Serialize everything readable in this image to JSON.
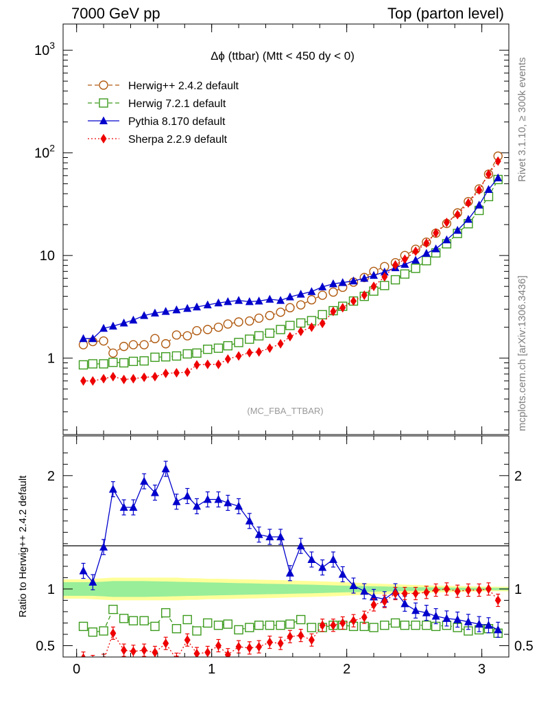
{
  "header": {
    "left": "7000 GeV pp",
    "right": "Top (parton level)"
  },
  "side": {
    "rivet": "Rivet 3.1.10, ≥ 300k events",
    "mcplots": "mcplots.cern.ch [arXiv:1306.3436]"
  },
  "colors": {
    "herwigpp": "#b05a10",
    "herwig7": "#3b9a1c",
    "pythia": "#0000cc",
    "sherpa": "#ee0000",
    "band_outer": "#ffff99",
    "band_inner": "#99ee99"
  },
  "chart_data": [
    {
      "type": "line",
      "title": "Δϕ (ttbar) (Mtt < 450 dy < 0)",
      "watermark": "(MC_FBA_TTBAR)",
      "yscale": "log",
      "xlim": [
        -0.1,
        3.2
      ],
      "ylim": [
        0.18,
        1800
      ],
      "y_ticks": [
        {
          "v": 1,
          "label": "1"
        },
        {
          "v": 10,
          "label": "10"
        },
        {
          "v": 100,
          "label": "10^2"
        },
        {
          "v": 1000,
          "label": "10^3"
        }
      ],
      "legend_position": "top-left",
      "x": [
        0.05,
        0.12,
        0.2,
        0.27,
        0.35,
        0.42,
        0.5,
        0.58,
        0.66,
        0.74,
        0.82,
        0.89,
        0.97,
        1.05,
        1.12,
        1.2,
        1.28,
        1.35,
        1.43,
        1.51,
        1.58,
        1.66,
        1.74,
        1.82,
        1.9,
        1.97,
        2.05,
        2.13,
        2.2,
        2.28,
        2.36,
        2.43,
        2.51,
        2.59,
        2.66,
        2.74,
        2.82,
        2.9,
        2.98,
        3.05,
        3.12
      ],
      "series": [
        {
          "name": "Herwig++ 2.4.2 default",
          "key": "herwigpp",
          "marker": "open-circle",
          "dash": "dashed",
          "values": [
            1.35,
            1.45,
            1.47,
            1.12,
            1.3,
            1.35,
            1.35,
            1.55,
            1.38,
            1.68,
            1.65,
            1.85,
            1.9,
            2.0,
            2.15,
            2.25,
            2.3,
            2.45,
            2.6,
            2.8,
            3.1,
            3.3,
            3.7,
            4.1,
            4.4,
            4.9,
            5.5,
            6.1,
            7.0,
            7.8,
            8.5,
            10.0,
            11.5,
            13.5,
            16.5,
            20.5,
            26.0,
            33.5,
            44.5,
            62.0,
            93.0
          ]
        },
        {
          "name": "Herwig 7.2.1 default",
          "key": "herwig7",
          "marker": "open-square",
          "dash": "dashed",
          "values": [
            0.86,
            0.88,
            0.88,
            0.91,
            0.9,
            0.93,
            0.94,
            1.02,
            1.03,
            1.05,
            1.1,
            1.12,
            1.22,
            1.25,
            1.32,
            1.42,
            1.53,
            1.65,
            1.75,
            1.9,
            2.08,
            2.2,
            2.32,
            2.65,
            2.9,
            3.2,
            3.6,
            4.0,
            4.5,
            5.1,
            5.8,
            6.6,
            7.5,
            8.9,
            10.6,
            13.0,
            16.4,
            20.4,
            27.5,
            37.5,
            55.0
          ]
        },
        {
          "name": "Pythia 8.170 default",
          "key": "pythia",
          "marker": "filled-triangle",
          "dash": "solid",
          "values": [
            1.55,
            1.55,
            1.95,
            2.05,
            2.2,
            2.35,
            2.6,
            2.75,
            2.85,
            2.95,
            3.05,
            3.15,
            3.3,
            3.45,
            3.55,
            3.65,
            3.55,
            3.6,
            3.75,
            3.65,
            3.95,
            4.2,
            4.45,
            4.95,
            5.3,
            5.45,
            5.65,
            6.0,
            6.4,
            6.9,
            7.6,
            8.2,
            9.0,
            10.5,
            11.6,
            14.2,
            17.6,
            22.5,
            31.0,
            44.0,
            57.0
          ]
        },
        {
          "name": "Sherpa 2.2.9 default",
          "key": "sherpa",
          "marker": "filled-diamond",
          "dash": "dotted",
          "values": [
            0.6,
            0.6,
            0.63,
            0.66,
            0.62,
            0.63,
            0.65,
            0.66,
            0.71,
            0.72,
            0.73,
            0.86,
            0.87,
            0.87,
            0.98,
            1.05,
            1.13,
            1.15,
            1.25,
            1.38,
            1.62,
            1.82,
            2.0,
            2.18,
            2.85,
            3.1,
            3.6,
            4.1,
            5.0,
            6.2,
            8.1,
            9.2,
            11.0,
            13.2,
            16.6,
            21.0,
            25.0,
            32.5,
            43.5,
            62.0,
            83.0
          ]
        }
      ]
    },
    {
      "type": "line",
      "ylabel": "Ratio to Herwig++ 2.4.2 default",
      "xlim": [
        -0.1,
        3.2
      ],
      "ylim": [
        0.4,
        2.35
      ],
      "x_ticks": [
        0,
        1,
        2,
        3
      ],
      "y_ticks": [
        0.5,
        1,
        2
      ],
      "x": [
        0.05,
        0.12,
        0.2,
        0.27,
        0.35,
        0.42,
        0.5,
        0.58,
        0.66,
        0.74,
        0.82,
        0.89,
        0.97,
        1.05,
        1.12,
        1.2,
        1.28,
        1.35,
        1.43,
        1.51,
        1.58,
        1.66,
        1.74,
        1.82,
        1.9,
        1.97,
        2.05,
        2.13,
        2.2,
        2.28,
        2.36,
        2.43,
        2.51,
        2.59,
        2.66,
        2.74,
        2.82,
        2.9,
        2.98,
        3.05,
        3.12
      ],
      "band": {
        "outer_halfwidth": [
          0.085,
          0.09,
          0.095,
          0.1,
          0.1,
          0.1,
          0.1,
          0.1,
          0.1,
          0.1,
          0.095,
          0.095,
          0.09,
          0.09,
          0.088,
          0.086,
          0.084,
          0.082,
          0.08,
          0.078,
          0.075,
          0.072,
          0.07,
          0.067,
          0.064,
          0.06,
          0.056,
          0.052,
          0.048,
          0.045,
          0.042,
          0.038,
          0.035,
          0.032,
          0.03,
          0.028,
          0.026,
          0.024,
          0.022,
          0.02,
          0.02
        ],
        "inner_halfwidth": [
          0.06,
          0.06,
          0.065,
          0.07,
          0.07,
          0.07,
          0.07,
          0.068,
          0.066,
          0.064,
          0.062,
          0.06,
          0.058,
          0.056,
          0.054,
          0.052,
          0.05,
          0.048,
          0.046,
          0.044,
          0.042,
          0.04,
          0.038,
          0.035,
          0.032,
          0.03,
          0.028,
          0.026,
          0.024,
          0.022,
          0.02,
          0.018,
          0.016,
          0.015,
          0.014,
          0.013,
          0.012,
          0.011,
          0.01,
          0.01,
          0.01
        ]
      },
      "series": [
        {
          "key": "herwig7",
          "marker": "open-square",
          "dash": "dashed",
          "values": [
            0.67,
            0.62,
            0.63,
            0.82,
            0.74,
            0.72,
            0.72,
            0.67,
            0.79,
            0.65,
            0.73,
            0.63,
            0.7,
            0.68,
            0.69,
            0.64,
            0.66,
            0.68,
            0.68,
            0.68,
            0.69,
            0.73,
            0.66,
            0.66,
            0.68,
            0.68,
            0.67,
            0.67,
            0.66,
            0.68,
            0.7,
            0.68,
            0.68,
            0.68,
            0.67,
            0.68,
            0.66,
            0.63,
            0.64,
            0.65,
            0.61
          ]
        },
        {
          "key": "pythia",
          "marker": "filled-triangle",
          "dash": "solid",
          "values": [
            1.16,
            1.06,
            1.37,
            1.88,
            1.72,
            1.72,
            1.95,
            1.85,
            2.06,
            1.77,
            1.82,
            1.73,
            1.79,
            1.79,
            1.76,
            1.73,
            1.6,
            1.48,
            1.46,
            1.46,
            1.14,
            1.38,
            1.26,
            1.19,
            1.26,
            1.13,
            1.03,
            0.98,
            0.93,
            0.91,
            0.98,
            0.87,
            0.81,
            0.79,
            0.76,
            0.74,
            0.73,
            0.71,
            0.69,
            0.68,
            0.64
          ]
        },
        {
          "key": "sherpa",
          "marker": "filled-diamond",
          "dash": "dotted",
          "values": [
            0.39,
            0.36,
            0.37,
            0.61,
            0.46,
            0.45,
            0.46,
            0.44,
            0.52,
            0.38,
            0.55,
            0.43,
            0.44,
            0.5,
            0.42,
            0.49,
            0.48,
            0.49,
            0.53,
            0.52,
            0.58,
            0.59,
            0.55,
            0.68,
            0.68,
            0.7,
            0.72,
            0.75,
            0.86,
            0.89,
            0.96,
            0.96,
            0.96,
            0.97,
            0.99,
            1.0,
            0.98,
            0.99,
            0.99,
            1.0,
            0.9
          ]
        }
      ]
    }
  ]
}
